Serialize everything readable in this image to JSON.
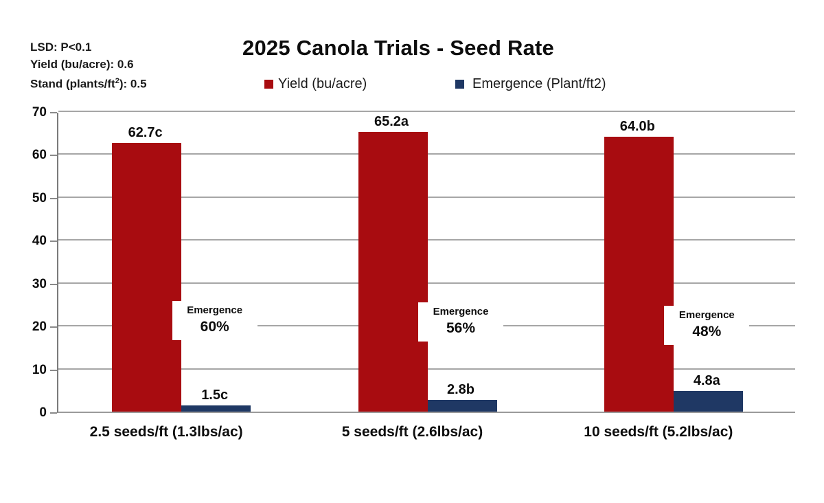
{
  "annotation_block": {
    "line1": "LSD: P<0.1",
    "line2": "Yield (bu/acre): 0.6",
    "line3_prefix": "Stand (plants/ft",
    "line3_sup": "2",
    "line3_suffix": "): 0.5"
  },
  "chart_data": {
    "type": "bar",
    "title": "2025 Canola Trials - Seed Rate",
    "categories": [
      "2.5 seeds/ft (1.3lbs/ac)",
      "5 seeds/ft (2.6lbs/ac)",
      "10 seeds/ft (5.2lbs/ac)"
    ],
    "series": [
      {
        "name": "Yield (bu/acre)",
        "color": "#a80c10",
        "values": [
          62.7,
          65.2,
          64.0
        ],
        "bar_labels": [
          "62.7c",
          "65.2a",
          "64.0b"
        ]
      },
      {
        "name": "Emergence (Plant/ft2)",
        "color": "#1f3864",
        "values": [
          1.5,
          2.8,
          4.8
        ],
        "bar_labels": [
          "1.5c",
          "2.8b",
          "4.8a"
        ]
      }
    ],
    "emergence_annotations": [
      {
        "label": "Emergence",
        "value": "60%"
      },
      {
        "label": "Emergence",
        "value": "56%"
      },
      {
        "label": "Emergence",
        "value": "48%"
      }
    ],
    "xlabel": "",
    "ylabel": "",
    "ylim": [
      0,
      70
    ],
    "yticks": [
      0,
      10,
      20,
      30,
      40,
      50,
      60,
      70
    ],
    "grid": true,
    "legend_position": "top",
    "colors": {
      "grid": "#a6a6a6",
      "axis": "#7a7a7a",
      "text": "#0d0d0d",
      "background": "#ffffff"
    }
  }
}
